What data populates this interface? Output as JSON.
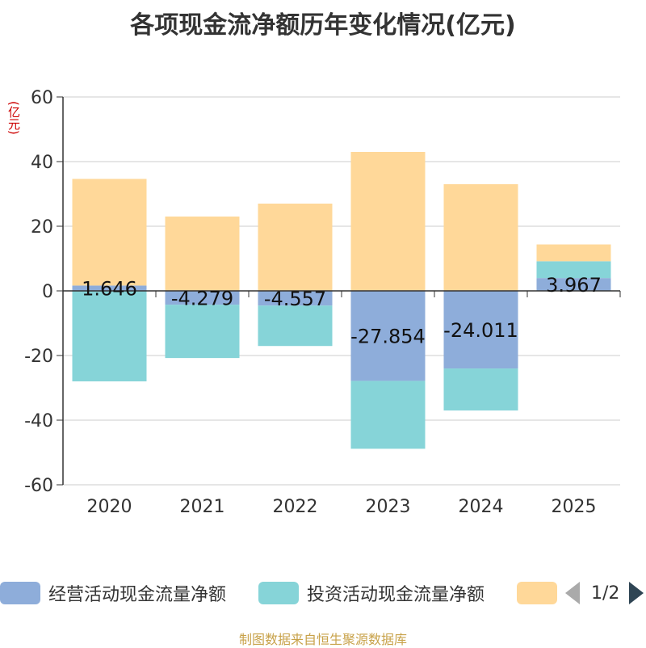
{
  "title": "各项现金流净额历年变化情况(亿元)",
  "unit_label": "(亿元)",
  "source": "制图数据来自恒生聚源数据库",
  "legend": {
    "items": [
      {
        "label": "经营活动现金流量净额",
        "color": "#8eadda"
      },
      {
        "label": "投资活动现金流量净额",
        "color": "#86d4d8"
      },
      {
        "label": "",
        "color": "#ffd899"
      }
    ],
    "page": "1/2"
  },
  "chart_data": {
    "type": "bar",
    "stacked": true,
    "categories": [
      "2020",
      "2021",
      "2022",
      "2023",
      "2024",
      "2025"
    ],
    "ylim": [
      -60,
      60
    ],
    "yticks": [
      60,
      40,
      20,
      0,
      -20,
      -40,
      -60
    ],
    "series": [
      {
        "name": "经营活动现金流量净额",
        "color": "#8eadda",
        "values": [
          1.646,
          -4.279,
          -4.557,
          -27.854,
          -24.011,
          3.967
        ],
        "labels": [
          "1.646",
          "-4.279",
          "-4.557",
          "-27.854",
          "-24.011",
          "3.967"
        ]
      },
      {
        "name": "投资活动现金流量净额",
        "color": "#86d4d8",
        "values": [
          -28.0,
          -16.5,
          -12.5,
          -21.0,
          -13.0,
          5.2
        ]
      },
      {
        "name": "",
        "color": "#ffd899",
        "values": [
          33.0,
          23.0,
          27.0,
          43.0,
          33.0,
          5.2
        ]
      }
    ],
    "grid": true
  }
}
